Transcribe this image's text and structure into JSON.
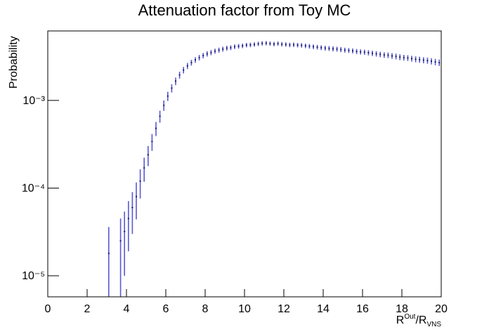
{
  "chart_data": {
    "type": "errorbar",
    "title": "Attenuation factor from Toy MC",
    "y_label": "Probability",
    "x_label": {
      "base": "R",
      "sup": "Out",
      "mid": "/R",
      "sub": "VNS"
    },
    "log_y": true,
    "xlim": [
      0,
      20
    ],
    "xticks": [
      0,
      2,
      4,
      6,
      8,
      10,
      12,
      14,
      16,
      18,
      20
    ],
    "ylim": [
      5.75e-06,
      0.0062
    ],
    "yticks": [
      {
        "value": 1e-05,
        "label": "10⁻⁵"
      },
      {
        "value": 0.0001,
        "label": "10⁻⁴"
      },
      {
        "value": 0.001,
        "label": "10⁻³"
      }
    ],
    "color": "#5a5ad2",
    "x": [
      3.1,
      3.3,
      3.5,
      3.7,
      3.9,
      4.1,
      4.3,
      4.5,
      4.7,
      4.9,
      5.1,
      5.3,
      5.5,
      5.7,
      5.9,
      6.1,
      6.3,
      6.5,
      6.7,
      6.9,
      7.1,
      7.3,
      7.5,
      7.7,
      7.9,
      8.1,
      8.3,
      8.5,
      8.7,
      8.9,
      9.1,
      9.3,
      9.5,
      9.7,
      9.9,
      10.1,
      10.3,
      10.5,
      10.7,
      10.9,
      11.1,
      11.3,
      11.5,
      11.7,
      11.9,
      12.1,
      12.3,
      12.5,
      12.7,
      12.9,
      13.1,
      13.3,
      13.5,
      13.7,
      13.9,
      14.1,
      14.3,
      14.5,
      14.7,
      14.9,
      15.1,
      15.3,
      15.5,
      15.7,
      15.9,
      16.1,
      16.3,
      16.5,
      16.7,
      16.9,
      17.1,
      17.3,
      17.5,
      17.7,
      17.9,
      18.1,
      18.3,
      18.5,
      18.7,
      18.9,
      19.1,
      19.3,
      19.5,
      19.7,
      19.9
    ],
    "values": [
      1.8e-05,
      null,
      null,
      2.5e-05,
      3.2e-05,
      4.5e-05,
      6e-05,
      8e-05,
      0.00012,
      0.00017,
      0.00024,
      0.00034,
      0.00048,
      0.00066,
      0.00088,
      0.00112,
      0.00138,
      0.00166,
      0.00195,
      0.00222,
      0.00248,
      0.0027,
      0.0029,
      0.00308,
      0.00325,
      0.0034,
      0.00352,
      0.00365,
      0.00375,
      0.00385,
      0.00395,
      0.004,
      0.0041,
      0.00415,
      0.0042,
      0.00428,
      0.0043,
      0.00435,
      0.00442,
      0.00448,
      0.0045,
      0.00445,
      0.0044,
      0.00445,
      0.00438,
      0.00435,
      0.0043,
      0.00432,
      0.00428,
      0.00425,
      0.0042,
      0.00415,
      0.0041,
      0.00405,
      0.004,
      0.00395,
      0.00392,
      0.00388,
      0.00385,
      0.0038,
      0.00375,
      0.00372,
      0.00368,
      0.00362,
      0.00358,
      0.00355,
      0.0035,
      0.00345,
      0.0034,
      0.00335,
      0.0033,
      0.00328,
      0.00322,
      0.00318,
      0.00312,
      0.00308,
      0.00305,
      0.003,
      0.00295,
      0.00292,
      0.00288,
      0.00285,
      0.0028,
      0.00275,
      0.0027
    ],
    "errors": [
      1.8e-05,
      null,
      null,
      2e-05,
      2.2e-05,
      2.6e-05,
      3e-05,
      3.6e-05,
      4.4e-05,
      5.2e-05,
      6.2e-05,
      7.4e-05,
      8.8e-05,
      0.000103,
      0.000119,
      0.000134,
      0.000149,
      0.000163,
      0.000177,
      0.000189,
      0.0002,
      0.000208,
      0.000216,
      0.000222,
      0.000228,
      0.000233,
      0.000237,
      0.000241,
      0.000245,
      0.000248,
      0.00025,
      0.00025,
      0.00025,
      0.00025,
      0.00025,
      0.00025,
      0.00025,
      0.00025,
      0.00025,
      0.00025,
      0.00025,
      0.00025,
      0.00025,
      0.00025,
      0.00025,
      0.00025,
      0.00025,
      0.00025,
      0.00025,
      0.00025,
      0.00025,
      0.00025,
      0.00025,
      0.00025,
      0.00025,
      0.00025,
      0.00025,
      0.00025,
      0.00025,
      0.00025,
      0.00024,
      0.00024,
      0.00024,
      0.00024,
      0.00024,
      0.00024,
      0.00024,
      0.00024,
      0.00024,
      0.00024,
      0.00024,
      0.00024,
      0.00024,
      0.00024,
      0.00024,
      0.00023,
      0.00023,
      0.00023,
      0.00023,
      0.00023,
      0.00023,
      0.00023,
      0.00023,
      0.00023,
      0.00023
    ]
  }
}
